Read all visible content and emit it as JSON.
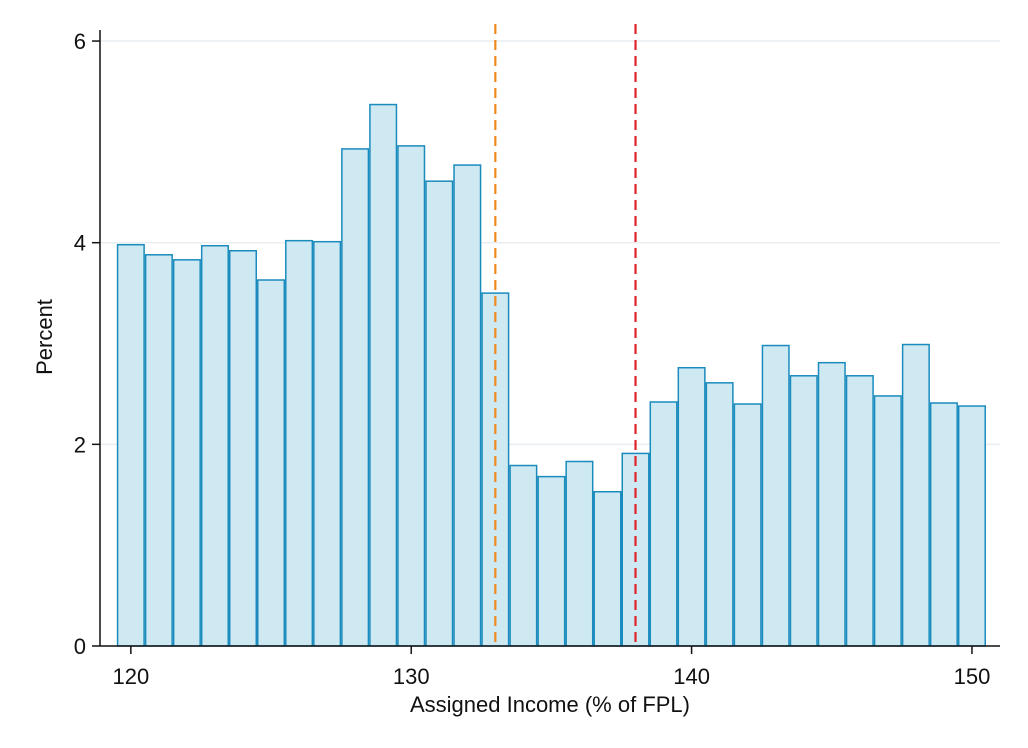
{
  "chart_data": {
    "type": "bar",
    "title": "",
    "xlabel": "Assigned Income (% of FPL)",
    "ylabel": "Percent",
    "xlim": [
      118.9,
      151.0
    ],
    "ylim": [
      0,
      6.05
    ],
    "bin_width": 1,
    "bins": [
      {
        "x": 120,
        "y": 3.98
      },
      {
        "x": 121,
        "y": 3.88
      },
      {
        "x": 122,
        "y": 3.83
      },
      {
        "x": 123,
        "y": 3.97
      },
      {
        "x": 124,
        "y": 3.92
      },
      {
        "x": 125,
        "y": 3.63
      },
      {
        "x": 126,
        "y": 4.02
      },
      {
        "x": 127,
        "y": 4.01
      },
      {
        "x": 128,
        "y": 4.93
      },
      {
        "x": 129,
        "y": 5.37
      },
      {
        "x": 130,
        "y": 4.96
      },
      {
        "x": 131,
        "y": 4.61
      },
      {
        "x": 132,
        "y": 4.77
      },
      {
        "x": 133,
        "y": 3.5
      },
      {
        "x": 134,
        "y": 1.79
      },
      {
        "x": 135,
        "y": 1.68
      },
      {
        "x": 136,
        "y": 1.83
      },
      {
        "x": 137,
        "y": 1.53
      },
      {
        "x": 138,
        "y": 1.91
      },
      {
        "x": 139,
        "y": 2.42
      },
      {
        "x": 140,
        "y": 2.76
      },
      {
        "x": 141,
        "y": 2.61
      },
      {
        "x": 142,
        "y": 2.4
      },
      {
        "x": 143,
        "y": 2.98
      },
      {
        "x": 144,
        "y": 2.68
      },
      {
        "x": 145,
        "y": 2.81
      },
      {
        "x": 146,
        "y": 2.68
      },
      {
        "x": 147,
        "y": 2.48
      },
      {
        "x": 148,
        "y": 2.99
      },
      {
        "x": 149,
        "y": 2.41
      },
      {
        "x": 150,
        "y": 2.38
      }
    ],
    "x_ticks": [
      120,
      130,
      140,
      150
    ],
    "y_ticks": [
      0,
      2,
      4,
      6
    ],
    "grid": "horizontal",
    "reference_lines": [
      {
        "x": 133,
        "color": "#ee8a1e",
        "style": "dashed"
      },
      {
        "x": 138,
        "color": "#e0222a",
        "style": "dashed"
      }
    ],
    "colors": {
      "bar_fill": "#cfe9f3",
      "bar_edge": "#1a8bbd",
      "grid": "#e8eef1",
      "axis": "#111111"
    }
  }
}
